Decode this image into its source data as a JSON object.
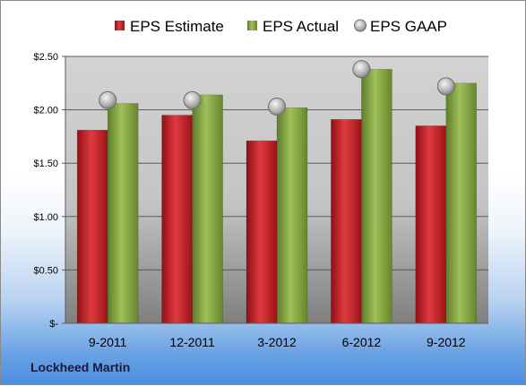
{
  "company": "Lockheed Martin",
  "chart_data": {
    "type": "bar",
    "categories": [
      "9-2011",
      "12-2011",
      "3-2012",
      "6-2012",
      "9-2012"
    ],
    "series": [
      {
        "name": "EPS Estimate",
        "kind": "bar",
        "color": "#c0262c",
        "values": [
          1.81,
          1.95,
          1.71,
          1.91,
          1.85
        ]
      },
      {
        "name": "EPS Actual",
        "kind": "bar",
        "color": "#86a845",
        "values": [
          2.06,
          2.14,
          2.02,
          2.38,
          2.25
        ]
      },
      {
        "name": "EPS GAAP",
        "kind": "marker",
        "color": "#b0b0b0",
        "values": [
          2.09,
          2.09,
          2.03,
          2.38,
          2.22
        ]
      }
    ],
    "yticks": [
      "$-",
      "$0.50",
      "$1.00",
      "$1.50",
      "$2.00",
      "$2.50"
    ],
    "ylim": [
      0,
      2.5
    ],
    "grid": true,
    "legend_position": "top"
  }
}
